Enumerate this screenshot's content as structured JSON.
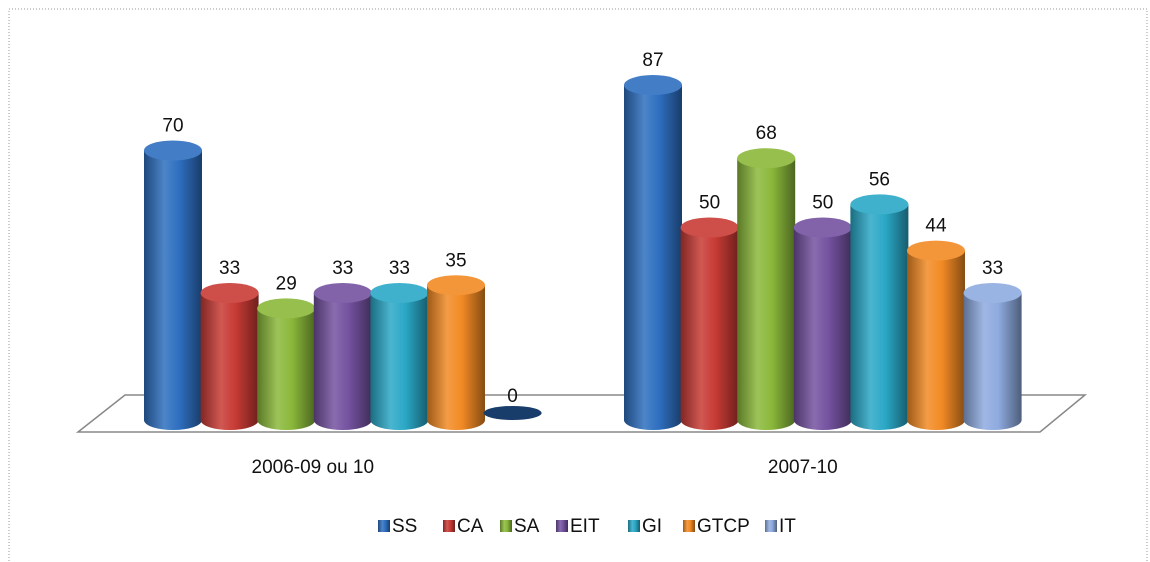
{
  "chart_data": {
    "type": "bar",
    "categories": [
      "2006-09 ou 10",
      "2007-10"
    ],
    "series": [
      {
        "name": "SS",
        "color": "#2e6fc0",
        "values": [
          70,
          87
        ]
      },
      {
        "name": "CA",
        "color": "#c83a35",
        "values": [
          33,
          50
        ]
      },
      {
        "name": "SA",
        "color": "#8ab83a",
        "values": [
          29,
          68
        ]
      },
      {
        "name": "EIT",
        "color": "#7452a0",
        "values": [
          33,
          50
        ]
      },
      {
        "name": "GI",
        "color": "#2aa8c6",
        "values": [
          33,
          56
        ]
      },
      {
        "name": "GTCP",
        "color": "#f28a24",
        "values": [
          35,
          44
        ]
      },
      {
        "name": "IT",
        "color": "#8eaadf",
        "values": [
          0,
          33
        ]
      }
    ],
    "legend": "bottom"
  }
}
